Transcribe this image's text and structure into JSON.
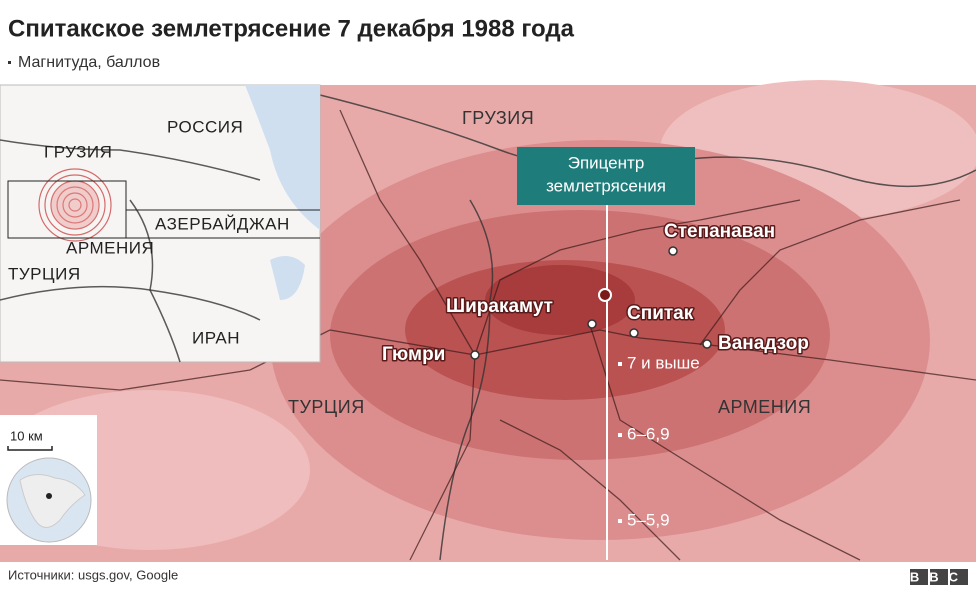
{
  "header": {
    "title": "Спитакское землетрясение 7 декабря 1988 года",
    "subtitle": "Магнитуда, баллов"
  },
  "inset": {
    "labels": [
      "РОССИЯ",
      "ГРУЗИЯ",
      "АЗЕРБАЙДЖАН",
      "АРМЕНИЯ",
      "ТУРЦИЯ",
      "ИРАН"
    ]
  },
  "map": {
    "countries": [
      "ГРУЗИЯ",
      "ТУРЦИЯ",
      "АРМЕНИЯ"
    ],
    "cities": [
      "Степанаван",
      "Ширакамут",
      "Спитак",
      "Ванадзор",
      "Гюмри"
    ],
    "epicenter_label": [
      "Эпицентр",
      "землетрясения"
    ],
    "legend": [
      "7 и выше",
      "6–6,9",
      "5–5,9"
    ]
  },
  "scale": "10 км",
  "footer": {
    "source": "Источники: usgs.gov, Google",
    "logo": "BBC"
  }
}
